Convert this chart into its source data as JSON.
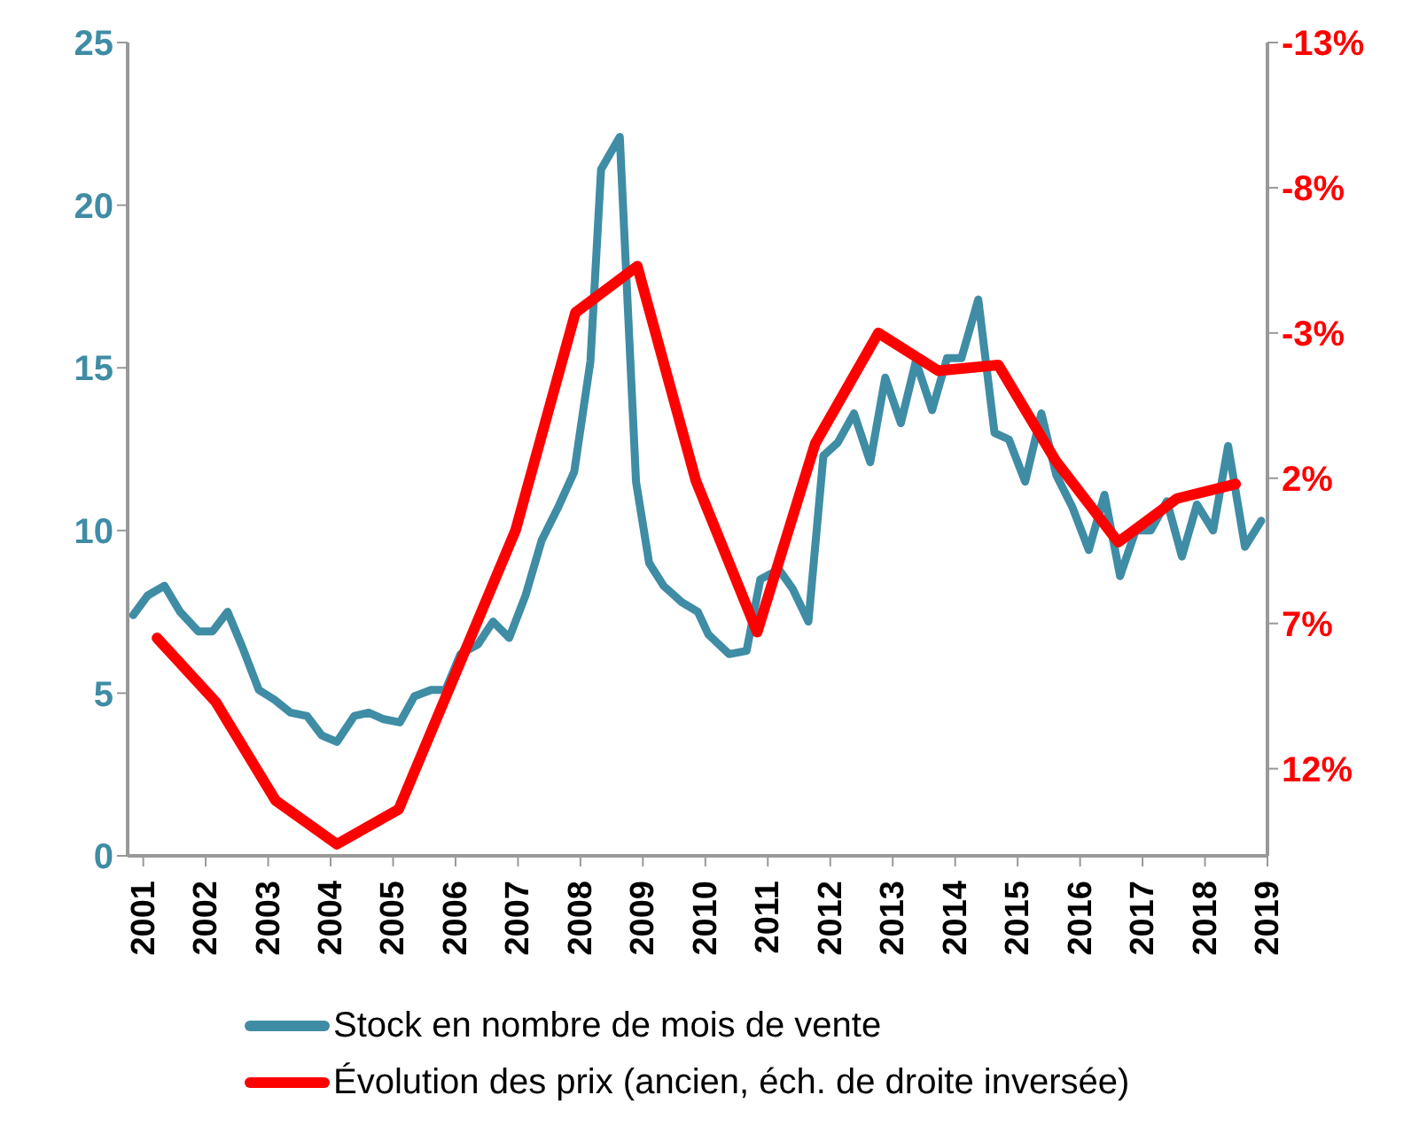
{
  "chart_data": {
    "type": "line",
    "xlim": [
      2000.75,
      2019
    ],
    "xticks": [
      2001,
      2002,
      2003,
      2004,
      2005,
      2006,
      2007,
      2008,
      2009,
      2010,
      2011,
      2012,
      2013,
      2014,
      2015,
      2016,
      2017,
      2018,
      2019
    ],
    "ylim": [
      0,
      25
    ],
    "yticks": [
      0,
      5,
      10,
      15,
      20,
      25
    ],
    "y2lim": [
      15,
      -13
    ],
    "y2ticks": [
      {
        "value": -13,
        "label": "-13%"
      },
      {
        "value": -8,
        "label": "-8%"
      },
      {
        "value": -3,
        "label": "-3%"
      },
      {
        "value": 2,
        "label": "2%"
      },
      {
        "value": 7,
        "label": "7%"
      },
      {
        "value": 12,
        "label": "12%"
      }
    ],
    "grid": false,
    "legend": "bottom",
    "marker": "none",
    "line_style": "solid",
    "series": [
      {
        "name": "Stock en nombre de mois de vente",
        "color": "#3f8ca5",
        "x": [
          2000.84,
          2001.07,
          2001.34,
          2001.59,
          2001.88,
          2002.11,
          2002.35,
          2002.59,
          2002.85,
          2003.1,
          2003.36,
          2003.62,
          2003.86,
          2004.1,
          2004.38,
          2004.61,
          2004.85,
          2005.11,
          2005.34,
          2005.61,
          2005.84,
          2006.08,
          2006.36,
          2006.6,
          2006.86,
          2007.12,
          2007.38,
          2007.64,
          2007.9,
          2008.16,
          2008.33,
          2008.63,
          2008.89,
          2009.1,
          2009.33,
          2009.62,
          2009.88,
          2010.05,
          2010.38,
          2010.66,
          2010.88,
          2011.18,
          2011.4,
          2011.65,
          2011.89,
          2012.12,
          2012.38,
          2012.64,
          2012.88,
          2013.13,
          2013.37,
          2013.63,
          2013.87,
          2014.1,
          2014.37,
          2014.63,
          2014.86,
          2015.12,
          2015.38,
          2015.62,
          2015.88,
          2016.14,
          2016.39,
          2016.64,
          2016.89,
          2017.13,
          2017.39,
          2017.63,
          2017.87,
          2018.13,
          2018.37,
          2018.64,
          2018.9
        ],
        "values": [
          7.4,
          8.0,
          8.3,
          7.5,
          6.9,
          6.9,
          7.5,
          6.4,
          5.1,
          4.8,
          4.4,
          4.3,
          3.7,
          3.5,
          4.3,
          4.4,
          4.2,
          4.1,
          4.9,
          5.1,
          5.1,
          6.2,
          6.5,
          7.2,
          6.7,
          8.0,
          9.7,
          10.7,
          11.8,
          15.2,
          21.1,
          22.1,
          11.5,
          9.0,
          8.3,
          7.8,
          7.5,
          6.8,
          6.2,
          6.3,
          8.5,
          8.8,
          8.2,
          7.2,
          12.3,
          12.7,
          13.6,
          12.1,
          14.7,
          13.3,
          15.2,
          13.7,
          15.3,
          15.3,
          17.1,
          13.0,
          12.8,
          11.5,
          13.6,
          11.7,
          10.7,
          9.4,
          11.1,
          8.6,
          10.0,
          10.0,
          10.9,
          9.2,
          10.8,
          10.0,
          12.6,
          9.5,
          10.3
        ]
      },
      {
        "name": "Évolution des prix (ancien, éch. de droite inversée)",
        "color": "#ff0000",
        "axis": "y2",
        "x": [
          2001.22,
          2002.16,
          2003.12,
          2004.1,
          2005.09,
          2006.96,
          2007.92,
          2008.91,
          2009.85,
          2010.83,
          2011.76,
          2012.77,
          2013.73,
          2014.69,
          2015.61,
          2016.61,
          2017.55,
          2018.49
        ],
        "values": [
          7.5,
          9.7,
          13.1,
          14.6,
          13.4,
          3.8,
          -3.7,
          -5.3,
          2.1,
          7.3,
          0.8,
          -3.0,
          -1.7,
          -1.9,
          1.4,
          4.2,
          2.7,
          2.2
        ]
      }
    ]
  }
}
